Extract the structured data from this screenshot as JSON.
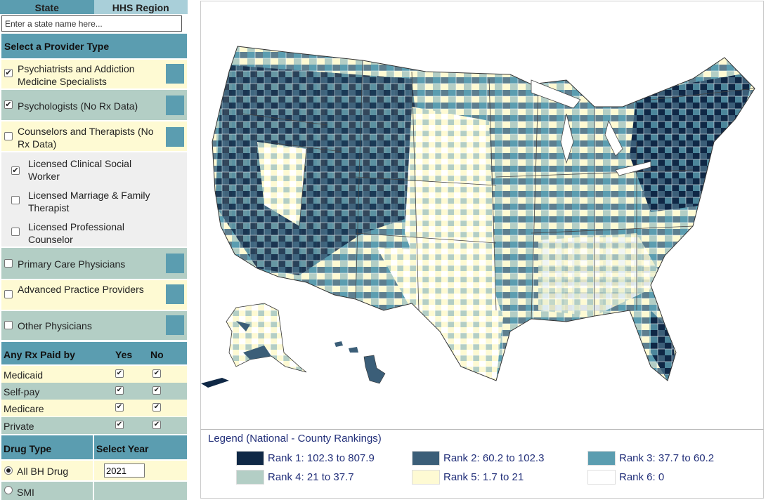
{
  "tabs": {
    "state": "State",
    "hhs": "HHS Region"
  },
  "search": {
    "placeholder": "Enter a state name here..."
  },
  "provider_section": {
    "title": "Select a Provider Type",
    "items": [
      {
        "label": "Psychiatrists and Addiction Medicine Specialists",
        "checked": true
      },
      {
        "label": "Psychologists (No Rx Data)",
        "checked": true
      },
      {
        "label": "Counselors and Therapists (No Rx Data)",
        "checked": false
      },
      {
        "label": "Licensed Clinical Social Worker",
        "checked": true
      },
      {
        "label": "Licensed Marriage & Family Therapist",
        "checked": false
      },
      {
        "label": "Licensed Professional Counselor",
        "checked": false
      },
      {
        "label": "Primary Care Physicians",
        "checked": false
      },
      {
        "label": "Advanced Practice Providers",
        "checked": false
      },
      {
        "label": "Other Physicians",
        "checked": false
      }
    ]
  },
  "rx_section": {
    "title": "Any Rx Paid by",
    "col_yes": "Yes",
    "col_no": "No",
    "rows": [
      {
        "label": "Medicaid",
        "yes": true,
        "no": true
      },
      {
        "label": "Self-pay",
        "yes": true,
        "no": true
      },
      {
        "label": "Medicare",
        "yes": true,
        "no": true
      },
      {
        "label": "Private",
        "yes": true,
        "no": true
      }
    ]
  },
  "drug_section": {
    "drug_title": "Drug Type",
    "year_title": "Select Year",
    "options": [
      {
        "label": "All BH Drug",
        "selected": true
      },
      {
        "label": "SMI",
        "selected": false
      }
    ],
    "year_value": "2021"
  },
  "legend": {
    "title": "Legend (National - County Rankings)",
    "items": [
      {
        "label": "Rank 1: 102.3 to 807.9",
        "color": "#0f2846"
      },
      {
        "label": "Rank 2: 60.2 to 102.3",
        "color": "#3b5e78"
      },
      {
        "label": "Rank 3: 37.7 to 60.2",
        "color": "#5b9db0"
      },
      {
        "label": "Rank 4: 21 to 37.7",
        "color": "#b3cec5"
      },
      {
        "label": "Rank 5: 1.7 to 21",
        "color": "#fefad3"
      },
      {
        "label": "Rank 6: 0",
        "color": "#ffffff"
      }
    ]
  },
  "colors": {
    "accent": "#5b9db0",
    "cream": "#fefad3",
    "sage": "#b3cec5",
    "navy": "#0f2846"
  }
}
